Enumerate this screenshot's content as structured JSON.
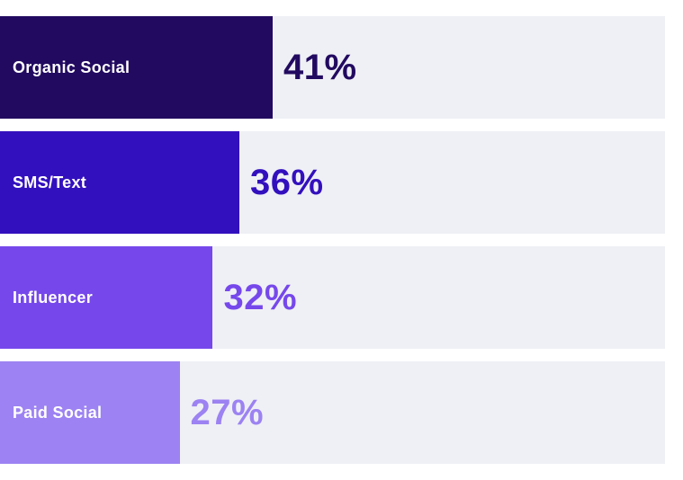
{
  "chart_data": {
    "type": "bar",
    "orientation": "horizontal",
    "title": "",
    "xlabel": "",
    "ylabel": "",
    "xlim": [
      0,
      100
    ],
    "grid": false,
    "legend": false,
    "categories": [
      "Organic Social",
      "SMS/Text",
      "Influencer",
      "Paid Social"
    ],
    "values": [
      41,
      36,
      32,
      27
    ],
    "value_labels": [
      "41%",
      "36%",
      "32%",
      "27%"
    ],
    "bar_colors": [
      "#220A60",
      "#3310BE",
      "#7648EB",
      "#9C82F2"
    ],
    "value_label_colors": [
      "#220A60",
      "#3310BE",
      "#7648EB",
      "#9C82F2"
    ],
    "track_color": "#EFF0F5",
    "label_text_color": "#FFFFFF"
  }
}
